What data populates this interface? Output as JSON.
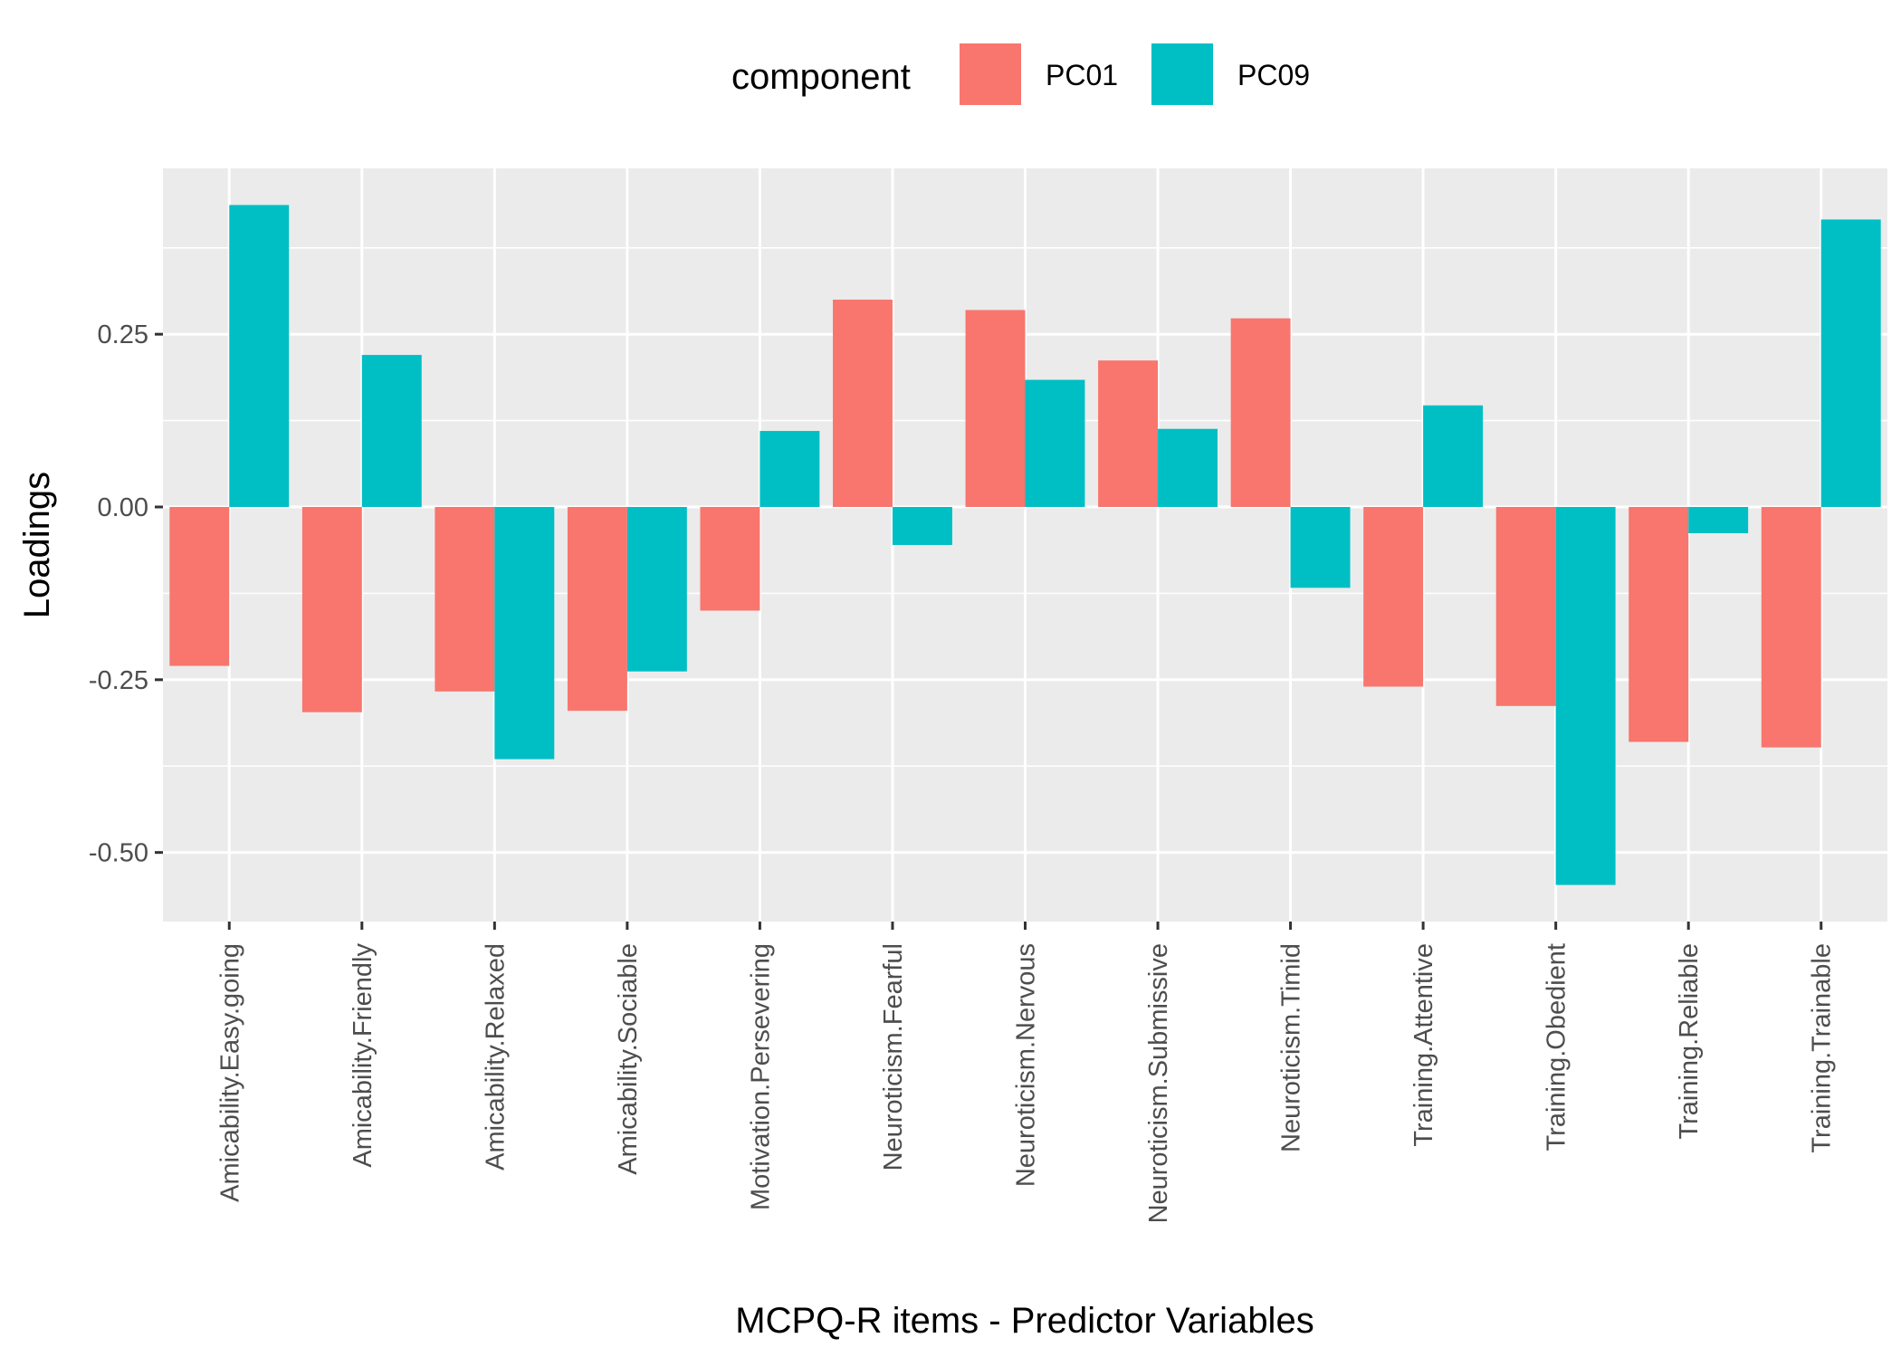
{
  "chart_data": {
    "type": "bar",
    "categories": [
      "Amicability.Easy.going",
      "Amicability.Friendly",
      "Amicability.Relaxed",
      "Amicability.Sociable",
      "Motivation.Persevering",
      "Neuroticism.Fearful",
      "Neuroticism.Nervous",
      "Neuroticism.Submissive",
      "Neuroticism.Timid",
      "Training.Attentive",
      "Training.Obedient",
      "Training.Reliable",
      "Training.Trainable"
    ],
    "series": [
      {
        "name": "PC01",
        "color": "#F8766D",
        "values": [
          -0.23,
          -0.297,
          -0.267,
          -0.295,
          -0.15,
          0.3,
          0.285,
          0.212,
          0.273,
          -0.26,
          -0.288,
          -0.34,
          -0.348
        ]
      },
      {
        "name": "PC09",
        "color": "#00BFC4",
        "values": [
          0.437,
          0.22,
          -0.365,
          -0.238,
          0.11,
          -0.055,
          0.184,
          0.113,
          -0.117,
          0.147,
          -0.547,
          -0.038,
          0.416
        ]
      }
    ],
    "yticks": [
      -0.5,
      -0.25,
      0.0,
      0.25
    ],
    "ytick_labels": [
      "-0.50",
      "-0.25",
      "0.00",
      "0.25"
    ],
    "ylim": [
      -0.6,
      0.49
    ],
    "xlabel": "MCPQ-R items - Predictor Variables",
    "ylabel": "Loadings",
    "legend": {
      "title": "component",
      "position": "top"
    },
    "grid": true,
    "panel_background": "#EBEBEB",
    "grid_color": "#FFFFFF"
  }
}
